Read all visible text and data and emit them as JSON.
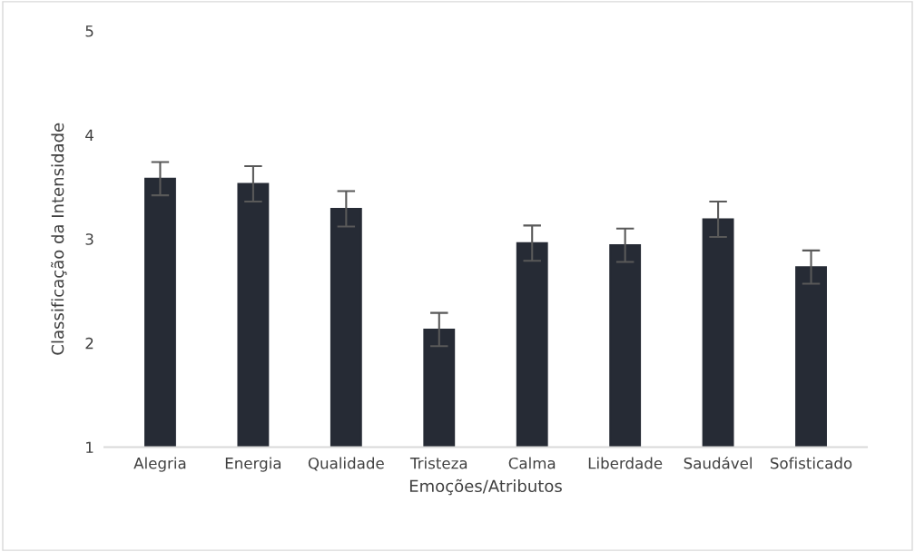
{
  "chart_data": {
    "type": "bar",
    "xlabel": "Emoções/Atributos",
    "ylabel": "Classificação da Intensidade",
    "categories": [
      "Alegria",
      "Energia",
      "Qualidade",
      "Tristeza",
      "Calma",
      "Liberdade",
      "Saudável",
      "Sofisticado"
    ],
    "values": [
      3.58,
      3.53,
      3.29,
      2.13,
      2.96,
      2.94,
      3.19,
      2.73
    ],
    "errors": [
      0.16,
      0.17,
      0.17,
      0.16,
      0.17,
      0.16,
      0.17,
      0.16
    ],
    "color": "#262b35",
    "ylim": [
      1,
      5
    ],
    "yticks": [
      1,
      2,
      3,
      4,
      5
    ],
    "grid": false,
    "legend": false
  }
}
